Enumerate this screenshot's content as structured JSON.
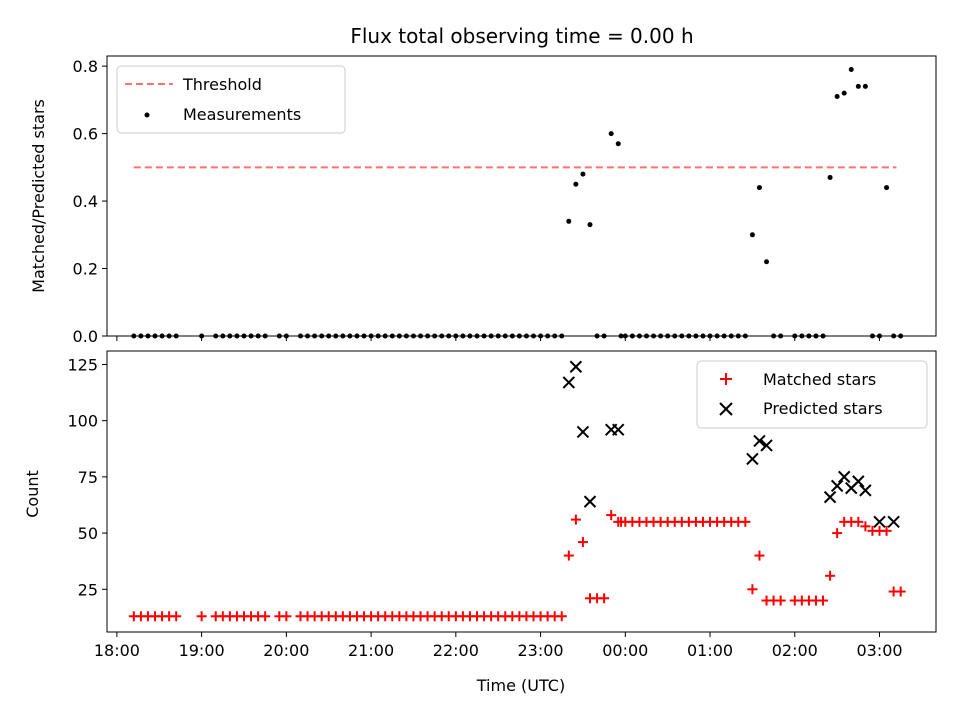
{
  "title": "Flux total observing time = 0.00 h",
  "chart_data": [
    {
      "type": "scatter",
      "panel": "top",
      "ylabel": "Matched/Predicted stars",
      "xlabel": "",
      "xlim": [
        "17:53",
        "03:40"
      ],
      "ylim": [
        0,
        0.83
      ],
      "yticks": [
        0.0,
        0.2,
        0.4,
        0.6,
        0.8
      ],
      "ytick_labels": [
        "0.0",
        "0.2",
        "0.4",
        "0.6",
        "0.8"
      ],
      "grid": false,
      "legend": "top-left",
      "threshold": {
        "name": "Threshold",
        "value": 0.5,
        "x_start": "18:12",
        "x_end": "03:12",
        "color": "#ff7070"
      },
      "series": [
        {
          "name": "Measurements",
          "color": "#000000",
          "x": [
            "18:12",
            "18:17",
            "18:22",
            "18:27",
            "18:32",
            "18:37",
            "18:42",
            "19:00",
            "19:10",
            "19:15",
            "19:20",
            "19:25",
            "19:30",
            "19:35",
            "19:40",
            "19:45",
            "19:55",
            "20:00",
            "20:10",
            "20:15",
            "20:20",
            "20:25",
            "20:30",
            "20:35",
            "20:40",
            "20:45",
            "20:50",
            "20:55",
            "21:00",
            "21:05",
            "21:10",
            "21:15",
            "21:20",
            "21:25",
            "21:30",
            "21:35",
            "21:40",
            "21:45",
            "21:50",
            "21:55",
            "22:00",
            "22:05",
            "22:10",
            "22:15",
            "22:20",
            "22:25",
            "22:30",
            "22:35",
            "22:40",
            "22:45",
            "22:50",
            "22:55",
            "23:00",
            "23:05",
            "23:10",
            "23:15",
            "23:20",
            "23:25",
            "23:30",
            "23:35",
            "23:40",
            "23:45",
            "23:50",
            "23:55",
            "23:57",
            "00:00",
            "00:05",
            "00:10",
            "00:15",
            "00:20",
            "00:25",
            "00:30",
            "00:35",
            "00:40",
            "00:45",
            "00:50",
            "00:55",
            "01:00",
            "01:05",
            "01:10",
            "01:15",
            "01:20",
            "01:25",
            "01:30",
            "01:35",
            "01:40",
            "01:45",
            "01:50",
            "02:00",
            "02:05",
            "02:10",
            "02:15",
            "02:20",
            "02:25",
            "02:30",
            "02:35",
            "02:40",
            "02:45",
            "02:50",
            "02:55",
            "03:00",
            "03:05",
            "03:10",
            "03:15"
          ],
          "y": [
            0,
            0,
            0,
            0,
            0,
            0,
            0,
            0,
            0,
            0,
            0,
            0,
            0,
            0,
            0,
            0,
            0,
            0,
            0,
            0,
            0,
            0,
            0,
            0,
            0,
            0,
            0,
            0,
            0,
            0,
            0,
            0,
            0,
            0,
            0,
            0,
            0,
            0,
            0,
            0,
            0,
            0,
            0,
            0,
            0,
            0,
            0,
            0,
            0,
            0,
            0,
            0,
            0,
            0,
            0,
            0,
            0.34,
            0.45,
            0.48,
            0.33,
            0,
            0,
            0.6,
            0.57,
            0,
            0,
            0,
            0,
            0,
            0,
            0,
            0,
            0,
            0,
            0,
            0,
            0,
            0,
            0,
            0,
            0,
            0,
            0,
            0.3,
            0.44,
            0.22,
            0,
            0,
            0,
            0,
            0,
            0,
            0,
            0.47,
            0.71,
            0.72,
            0.79,
            0.74,
            0.74,
            0,
            0,
            0.44,
            0,
            0
          ]
        }
      ]
    },
    {
      "type": "scatter",
      "panel": "bottom",
      "ylabel": "Count",
      "xlabel": "Time (UTC)",
      "xlim": [
        "17:53",
        "03:40"
      ],
      "ylim": [
        6,
        131
      ],
      "yticks": [
        25,
        50,
        75,
        100,
        125
      ],
      "ytick_labels": [
        "25",
        "50",
        "75",
        "100",
        "125"
      ],
      "xticks": [
        "18:00",
        "19:00",
        "20:00",
        "21:00",
        "22:00",
        "23:00",
        "00:00",
        "01:00",
        "02:00",
        "03:00"
      ],
      "xtick_labels": [
        "18:00",
        "19:00",
        "20:00",
        "21:00",
        "22:00",
        "23:00",
        "00:00",
        "01:00",
        "02:00",
        "03:00"
      ],
      "grid": false,
      "legend": "top-right",
      "series": [
        {
          "name": "Matched stars",
          "color": "#ff0000",
          "marker": "plus",
          "x": [
            "18:12",
            "18:17",
            "18:22",
            "18:27",
            "18:32",
            "18:37",
            "18:42",
            "19:00",
            "19:10",
            "19:15",
            "19:20",
            "19:25",
            "19:30",
            "19:35",
            "19:40",
            "19:45",
            "19:55",
            "20:00",
            "20:10",
            "20:15",
            "20:20",
            "20:25",
            "20:30",
            "20:35",
            "20:40",
            "20:45",
            "20:50",
            "20:55",
            "21:00",
            "21:05",
            "21:10",
            "21:15",
            "21:20",
            "21:25",
            "21:30",
            "21:35",
            "21:40",
            "21:45",
            "21:50",
            "21:55",
            "22:00",
            "22:05",
            "22:10",
            "22:15",
            "22:20",
            "22:25",
            "22:30",
            "22:35",
            "22:40",
            "22:45",
            "22:50",
            "22:55",
            "23:00",
            "23:05",
            "23:10",
            "23:15",
            "23:20",
            "23:25",
            "23:30",
            "23:35",
            "23:40",
            "23:45",
            "23:50",
            "23:55",
            "23:57",
            "00:00",
            "00:05",
            "00:10",
            "00:15",
            "00:20",
            "00:25",
            "00:30",
            "00:35",
            "00:40",
            "00:45",
            "00:50",
            "00:55",
            "01:00",
            "01:05",
            "01:10",
            "01:15",
            "01:20",
            "01:25",
            "01:30",
            "01:35",
            "01:40",
            "01:45",
            "01:50",
            "02:00",
            "02:05",
            "02:10",
            "02:15",
            "02:20",
            "02:25",
            "02:30",
            "02:35",
            "02:40",
            "02:45",
            "02:50",
            "02:55",
            "03:00",
            "03:05",
            "03:10",
            "03:15"
          ],
          "y": [
            13,
            13,
            13,
            13,
            13,
            13,
            13,
            13,
            13,
            13,
            13,
            13,
            13,
            13,
            13,
            13,
            13,
            13,
            13,
            13,
            13,
            13,
            13,
            13,
            13,
            13,
            13,
            13,
            13,
            13,
            13,
            13,
            13,
            13,
            13,
            13,
            13,
            13,
            13,
            13,
            13,
            13,
            13,
            13,
            13,
            13,
            13,
            13,
            13,
            13,
            13,
            13,
            13,
            13,
            13,
            13,
            40,
            56,
            46,
            21,
            21,
            21,
            58,
            55,
            55,
            55,
            55,
            55,
            55,
            55,
            55,
            55,
            55,
            55,
            55,
            55,
            55,
            55,
            55,
            55,
            55,
            55,
            55,
            25,
            40,
            20,
            20,
            20,
            20,
            20,
            20,
            20,
            20,
            31,
            50,
            55,
            55,
            55,
            53,
            51,
            51,
            51,
            24,
            24
          ]
        },
        {
          "name": "Predicted stars",
          "color": "#000000",
          "marker": "x",
          "x": [
            "23:20",
            "23:25",
            "23:30",
            "23:35",
            "23:50",
            "23:55",
            "01:30",
            "01:35",
            "01:40",
            "02:25",
            "02:30",
            "02:35",
            "02:40",
            "02:45",
            "02:50",
            "03:00",
            "03:10"
          ],
          "y": [
            117,
            124,
            95,
            64,
            96,
            96,
            83,
            91,
            89,
            66,
            71,
            75,
            70,
            73,
            69,
            55,
            55
          ]
        }
      ]
    }
  ]
}
